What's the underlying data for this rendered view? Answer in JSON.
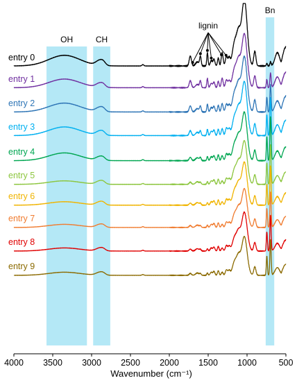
{
  "chart_data": {
    "type": "line",
    "xlabel": "Wavenumber (cm⁻¹)",
    "xlim": [
      4000,
      500
    ],
    "x_ticks": [
      4000,
      3500,
      3000,
      2500,
      2000,
      1500,
      1000,
      500
    ],
    "x_tick_labels": [
      "4000",
      "3500",
      "3000",
      "2500",
      "2000",
      "1500",
      "1000",
      "500"
    ],
    "bands": [
      {
        "label": "OH",
        "range": [
          3580,
          3060
        ]
      },
      {
        "label": "CH",
        "range": [
          2980,
          2760
        ]
      },
      {
        "label": "Bn",
        "range": [
          760,
          650
        ]
      }
    ],
    "annotation": {
      "text": "lignin",
      "peaks": [
        1700,
        1600,
        1510,
        1460,
        1330,
        1270
      ]
    },
    "series": [
      {
        "name": "entry 0",
        "color": "#000000"
      },
      {
        "name": "entry 1",
        "color": "#7030a0"
      },
      {
        "name": "entry 2",
        "color": "#2e75b6"
      },
      {
        "name": "entry 3",
        "color": "#00b0f0"
      },
      {
        "name": "entry 4",
        "color": "#00a651"
      },
      {
        "name": "entry 5",
        "color": "#8dc63f"
      },
      {
        "name": "entry 6",
        "color": "#f0b400"
      },
      {
        "name": "entry 7",
        "color": "#f07c30"
      },
      {
        "name": "entry 8",
        "color": "#e00000"
      },
      {
        "name": "entry 9",
        "color": "#8b6a00"
      }
    ]
  }
}
